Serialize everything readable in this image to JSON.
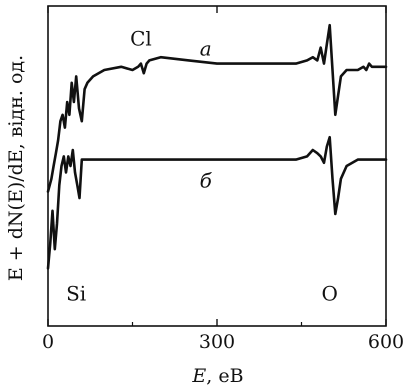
{
  "chart_data": {
    "type": "line",
    "xlabel": "E, eB",
    "xlabel_var": "E",
    "xlabel_rest": ", eB",
    "ylabel": "E + dN(E)/dE, відн. од.",
    "xlim": [
      0,
      600
    ],
    "x_ticks": [
      0,
      300,
      600
    ],
    "x_tick_labels": [
      "0",
      "300",
      "600"
    ],
    "y_ticks": false,
    "grid": false,
    "annotations": [
      {
        "text": "Cl",
        "x": 165,
        "curve": "a"
      },
      {
        "text": "Si",
        "x": 50,
        "curve": "bottom"
      },
      {
        "text": "O",
        "x": 500,
        "curve": "bottom"
      }
    ],
    "series": [
      {
        "name": "а",
        "label_x": 280,
        "x": [
          0,
          6,
          10,
          14,
          18,
          22,
          26,
          30,
          34,
          38,
          42,
          46,
          50,
          55,
          60,
          65,
          70,
          80,
          100,
          130,
          150,
          160,
          165,
          170,
          175,
          180,
          200,
          250,
          300,
          350,
          400,
          440,
          460,
          470,
          478,
          484,
          490,
          495,
          500,
          505,
          510,
          515,
          520,
          530,
          550,
          560,
          565,
          570,
          575,
          580,
          600
        ],
        "y": [
          0.42,
          0.46,
          0.5,
          0.54,
          0.58,
          0.64,
          0.66,
          0.62,
          0.7,
          0.66,
          0.76,
          0.7,
          0.78,
          0.68,
          0.64,
          0.74,
          0.76,
          0.78,
          0.8,
          0.81,
          0.8,
          0.81,
          0.82,
          0.79,
          0.82,
          0.83,
          0.84,
          0.83,
          0.82,
          0.82,
          0.82,
          0.82,
          0.83,
          0.84,
          0.83,
          0.87,
          0.82,
          0.88,
          0.94,
          0.8,
          0.66,
          0.72,
          0.78,
          0.8,
          0.8,
          0.81,
          0.8,
          0.82,
          0.81,
          0.81,
          0.81
        ]
      },
      {
        "name": "б",
        "label_x": 280,
        "x": [
          0,
          4,
          8,
          12,
          16,
          20,
          24,
          28,
          32,
          36,
          40,
          44,
          48,
          52,
          56,
          60,
          65,
          70,
          100,
          200,
          300,
          400,
          440,
          460,
          470,
          478,
          484,
          490,
          495,
          500,
          505,
          510,
          515,
          520,
          530,
          550,
          600
        ],
        "y": [
          0.18,
          0.26,
          0.36,
          0.24,
          0.32,
          0.44,
          0.5,
          0.53,
          0.48,
          0.53,
          0.5,
          0.55,
          0.48,
          0.44,
          0.4,
          0.52,
          0.52,
          0.52,
          0.52,
          0.52,
          0.52,
          0.52,
          0.52,
          0.53,
          0.55,
          0.54,
          0.53,
          0.51,
          0.56,
          0.59,
          0.46,
          0.35,
          0.4,
          0.46,
          0.5,
          0.52,
          0.52
        ]
      }
    ]
  }
}
